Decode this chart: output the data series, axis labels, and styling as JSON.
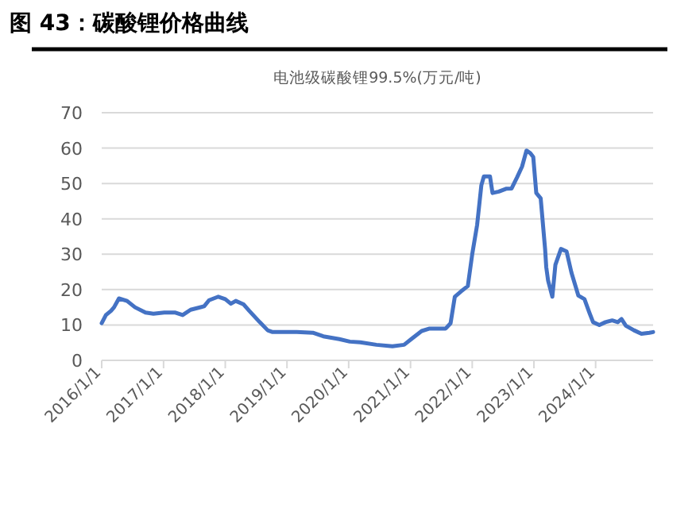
{
  "chart_data": {
    "type": "line",
    "title": "图 43：碳酸锂价格曲线",
    "subtitle": "电池级碳酸锂99.5%(万元/吨)",
    "x": [
      "2016-01-01",
      "2016-01-26",
      "2016-02-25",
      "2016-03-14",
      "2016-04-12",
      "2016-05-30",
      "2016-07-16",
      "2016-09-16",
      "2016-11-02",
      "2017-01-05",
      "2017-03-12",
      "2017-04-24",
      "2017-06-10",
      "2017-08-29",
      "2017-09-27",
      "2017-11-21",
      "2018-01-01",
      "2018-02-03",
      "2018-03-04",
      "2018-04-20",
      "2018-05-23",
      "2018-07-24",
      "2018-09-09",
      "2018-10-08",
      "2019-02-28",
      "2019-06-03",
      "2019-08-04",
      "2019-11-07",
      "2020-01-08",
      "2020-03-10",
      "2020-06-13",
      "2020-09-16",
      "2020-11-24",
      "2021-01-05",
      "2021-03-08",
      "2021-04-24",
      "2021-07-28",
      "2021-08-26",
      "2021-09-20",
      "2021-10-27",
      "2021-12-06",
      "2022-01-01",
      "2022-01-30",
      "2022-02-24",
      "2022-03-11",
      "2022-04-16",
      "2022-05-01",
      "2022-06-07",
      "2022-07-20",
      "2022-08-22",
      "2022-09-24",
      "2022-10-23",
      "2022-11-18",
      "2022-12-10",
      "2022-12-28",
      "2023-01-15",
      "2023-02-10",
      "2023-03-08",
      "2023-03-15",
      "2023-03-26",
      "2023-04-20",
      "2023-05-08",
      "2023-06-10",
      "2023-07-13",
      "2023-08-11",
      "2023-09-21",
      "2023-10-27",
      "2023-11-25",
      "2023-12-17",
      "2024-01-23",
      "2024-02-28",
      "2024-04-08",
      "2024-05-11",
      "2024-06-02",
      "2024-06-28",
      "2024-08-15",
      "2024-09-28",
      "2024-11-14",
      "2024-12-06"
    ],
    "series": [
      {
        "color": "#4472c4",
        "values": [
          10.5,
          12.8,
          14,
          15,
          17.5,
          16.8,
          15,
          13.5,
          13.2,
          13.5,
          13.5,
          12.8,
          14.3,
          15.3,
          17,
          18,
          17.3,
          16,
          16.8,
          15.8,
          14,
          10.8,
          8.5,
          8,
          8,
          7.8,
          6.8,
          6,
          5.3,
          5.1,
          4.4,
          4,
          4.4,
          6,
          8.3,
          9,
          9,
          10.5,
          18,
          19.5,
          21,
          30,
          38.3,
          49.5,
          52,
          52,
          47.3,
          47.7,
          48.5,
          48.6,
          51.8,
          54.8,
          59.3,
          58.6,
          57.5,
          47.3,
          45.8,
          31.5,
          26.3,
          22.5,
          18,
          27,
          31.5,
          30.8,
          24.8,
          18.3,
          17.3,
          13.5,
          10.8,
          10,
          10.8,
          11.3,
          10.8,
          11.7,
          9.8,
          8.5,
          7.5,
          7.8,
          8
        ]
      }
    ],
    "xlim": [
      "2016-01-01",
      "2024-12-06"
    ],
    "xticks": [
      {
        "value": "2016-01-01",
        "label": "2016/1/1"
      },
      {
        "value": "2017-01-01",
        "label": "2017/1/1"
      },
      {
        "value": "2018-01-01",
        "label": "2018/1/1"
      },
      {
        "value": "2019-01-01",
        "label": "2019/1/1"
      },
      {
        "value": "2020-01-01",
        "label": "2020/1/1"
      },
      {
        "value": "2021-01-01",
        "label": "2021/1/1"
      },
      {
        "value": "2022-01-01",
        "label": "2022/1/1"
      },
      {
        "value": "2023-01-01",
        "label": "2023/1/1"
      },
      {
        "value": "2024-01-01",
        "label": "2024/1/1"
      }
    ],
    "ylim": [
      0,
      70
    ],
    "yticks": [
      0,
      10,
      20,
      30,
      40,
      50,
      60,
      70
    ],
    "grid": "y",
    "marker": "none",
    "line_style": "solid"
  }
}
